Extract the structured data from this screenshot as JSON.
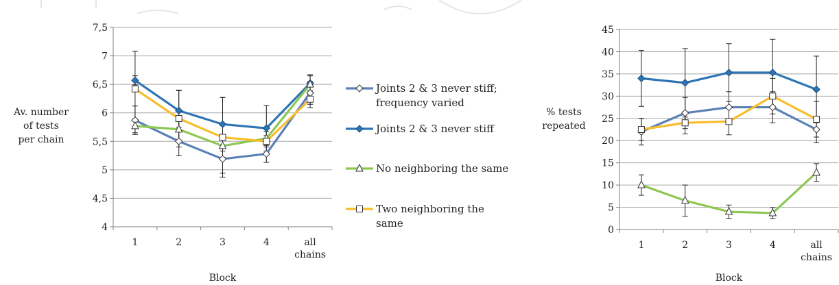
{
  "chart_data": [
    {
      "type": "line",
      "categories": [
        "1",
        "2",
        "3",
        "4",
        "all chains"
      ],
      "ylabel_lines": [
        "Av. number",
        "of tests",
        "per chain"
      ],
      "xlabel": "Block",
      "ylim": [
        4,
        7.5
      ],
      "yticks": [
        "4",
        "4,5",
        "5",
        "5,5",
        "6",
        "6,5",
        "7",
        "7,5"
      ],
      "ytick_values": [
        4,
        4.5,
        5,
        5.5,
        6,
        6.5,
        7,
        7.5
      ],
      "grid": true,
      "legend": "right",
      "series": [
        {
          "name_lines": [
            "Joints 2 & 3 never stiff;",
            "frequency varied"
          ],
          "color": "#5b80b6",
          "marker": "diamond-open",
          "values": [
            5.87,
            5.5,
            5.19,
            5.28,
            6.35
          ],
          "err": [
            0.25,
            0.25,
            0.25,
            0.15,
            0.2
          ]
        },
        {
          "name_lines": [
            "Joints 2 & 3 never stiff"
          ],
          "color": "#2e75b6",
          "marker": "diamond-filled",
          "values": [
            6.57,
            6.04,
            5.8,
            5.73,
            6.52
          ],
          "err": [
            0.08,
            0.35,
            0.47,
            0.4,
            0.15
          ]
        },
        {
          "name_lines": [
            "No neighboring the same"
          ],
          "color": "#8cc751",
          "marker": "triangle-open",
          "values": [
            5.77,
            5.71,
            5.42,
            5.55,
            6.5
          ],
          "err": [
            0.12,
            0.2,
            0.2,
            0.12,
            0.15
          ]
        },
        {
          "name_lines": [
            "Two neighboring the",
            "same"
          ],
          "color": "#f9bd2c",
          "marker": "square-open",
          "values": [
            6.42,
            5.9,
            5.57,
            5.5,
            6.24
          ],
          "err": [
            0.66,
            0.5,
            0.7,
            0.1,
            0.15
          ]
        }
      ]
    },
    {
      "type": "line",
      "categories": [
        "1",
        "2",
        "3",
        "4",
        "all chains"
      ],
      "ylabel_lines": [
        "% tests",
        "repeated"
      ],
      "xlabel": "Block",
      "ylim": [
        0,
        45
      ],
      "yticks": [
        "0",
        "5",
        "10",
        "15",
        "20",
        "25",
        "30",
        "35",
        "40",
        "45"
      ],
      "ytick_values": [
        0,
        5,
        10,
        15,
        20,
        25,
        30,
        35,
        40,
        45
      ],
      "grid": true,
      "series": [
        {
          "color": "#5b80b6",
          "marker": "diamond-open",
          "values": [
            22,
            26.2,
            27.5,
            27.5,
            22.5
          ],
          "err": [
            3,
            3.5,
            3.5,
            3.5,
            3
          ]
        },
        {
          "color": "#2e75b6",
          "marker": "diamond-filled",
          "values": [
            34,
            33,
            35.3,
            35.3,
            31.5
          ],
          "err": [
            6.3,
            7.7,
            6.5,
            7.5,
            7.5
          ]
        },
        {
          "color": "#8cc751",
          "marker": "triangle-open",
          "values": [
            10,
            6.5,
            4,
            3.7,
            12.8
          ],
          "err": [
            2.3,
            3.5,
            1.5,
            1.2,
            2
          ]
        },
        {
          "color": "#f9bd2c",
          "marker": "square-open",
          "values": [
            22.5,
            24,
            24.3,
            30,
            24.8
          ],
          "err": [
            2.5,
            2.5,
            3,
            4,
            4
          ]
        }
      ]
    }
  ]
}
